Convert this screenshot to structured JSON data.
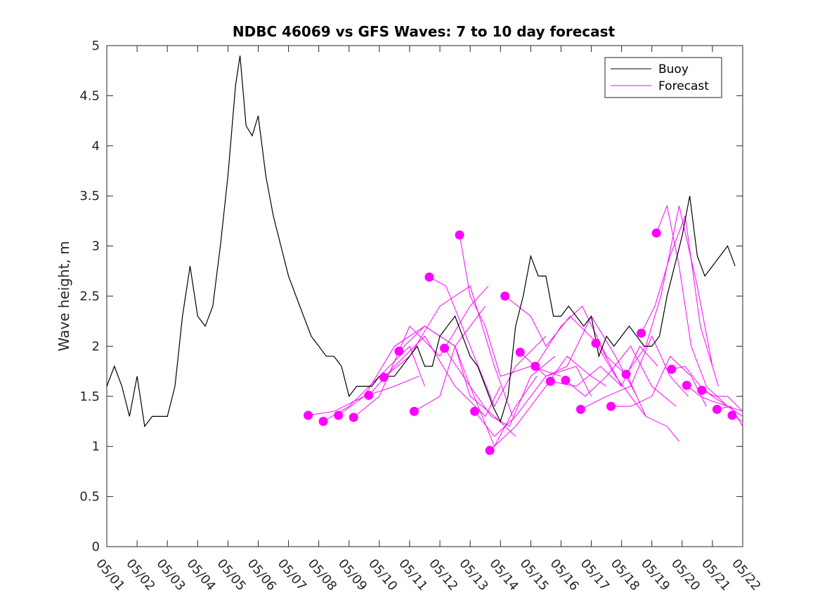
{
  "chart_data": {
    "type": "line",
    "title": "NDBC 46069 vs GFS Waves: 7 to 10 day forecast",
    "xlabel": "",
    "ylabel": "Wave height, m",
    "xlim": [
      0,
      21
    ],
    "ylim": [
      0,
      5
    ],
    "x_unit": "days since 05/01",
    "xticks": [
      0,
      1,
      2,
      3,
      4,
      5,
      6,
      7,
      8,
      9,
      10,
      11,
      12,
      13,
      14,
      15,
      16,
      17,
      18,
      19,
      20,
      21
    ],
    "xtick_labels": [
      "05/01",
      "05/02",
      "05/03",
      "05/04",
      "05/05",
      "05/06",
      "05/07",
      "05/08",
      "05/09",
      "05/10",
      "05/11",
      "05/12",
      "05/13",
      "05/14",
      "05/15",
      "05/16",
      "05/17",
      "05/18",
      "05/19",
      "05/20",
      "05/21",
      "05/22"
    ],
    "yticks": [
      0,
      0.5,
      1,
      1.5,
      2,
      2.5,
      3,
      3.5,
      4,
      4.5,
      5
    ],
    "ytick_labels": [
      "0",
      "0.5",
      "1",
      "1.5",
      "2",
      "2.5",
      "3",
      "3.5",
      "4",
      "4.5",
      "5"
    ],
    "grid": false,
    "legend_position": "top-right",
    "legend": [
      {
        "label": "Buoy",
        "color": "#000000"
      },
      {
        "label": "Forecast",
        "color": "#ff00ff"
      }
    ],
    "colors": {
      "buoy": "#000000",
      "forecast": "#ff00ff"
    },
    "series": [
      {
        "name": "Buoy",
        "x": [
          0,
          0.25,
          0.5,
          0.75,
          1,
          1.25,
          1.5,
          1.75,
          2,
          2.25,
          2.5,
          2.75,
          3,
          3.25,
          3.5,
          3.75,
          4,
          4.25,
          4.4,
          4.6,
          4.8,
          5,
          5.25,
          5.5,
          5.75,
          6,
          6.25,
          6.5,
          6.75,
          7,
          7.25,
          7.5,
          7.75,
          8,
          8.25,
          8.5,
          8.75,
          9,
          9.25,
          9.5,
          9.75,
          10,
          10.25,
          10.5,
          10.75,
          11,
          11.25,
          11.5,
          11.75,
          12,
          12.25,
          12.5,
          12.75,
          13,
          13.25,
          13.5,
          13.75,
          14,
          14.25,
          14.5,
          14.75,
          15,
          15.25,
          15.5,
          15.75,
          16,
          16.25,
          16.5,
          16.75,
          17,
          17.25,
          17.5,
          17.75,
          18,
          18.25,
          18.5,
          18.75,
          19,
          19.25,
          19.5,
          19.75,
          20,
          20.25,
          20.5,
          20.75
        ],
        "y": [
          1.6,
          1.8,
          1.6,
          1.3,
          1.7,
          1.2,
          1.3,
          1.3,
          1.3,
          1.6,
          2.3,
          2.8,
          2.3,
          2.2,
          2.4,
          3.0,
          3.7,
          4.6,
          4.9,
          4.2,
          4.1,
          4.3,
          3.7,
          3.3,
          3.0,
          2.7,
          2.5,
          2.3,
          2.1,
          2.0,
          1.9,
          1.9,
          1.8,
          1.5,
          1.6,
          1.6,
          1.6,
          1.7,
          1.7,
          1.7,
          1.8,
          1.9,
          2.0,
          1.8,
          1.8,
          2.1,
          2.2,
          2.3,
          2.1,
          1.9,
          1.8,
          1.6,
          1.4,
          1.25,
          1.5,
          2.2,
          2.5,
          2.9,
          2.7,
          2.7,
          2.3,
          2.3,
          2.4,
          2.3,
          2.2,
          2.3,
          1.9,
          2.1,
          2.0,
          2.1,
          2.2,
          2.1,
          2.0,
          2.0,
          2.1,
          2.5,
          2.8,
          3.1,
          3.5,
          2.9,
          2.7,
          2.8,
          2.9,
          3.0,
          2.8
        ]
      },
      {
        "name": "Forecast",
        "runs": [
          {
            "x": [
              6.65,
              7.5,
              8.5,
              9.5,
              10.3
            ],
            "y": [
              1.31,
              1.35,
              1.5,
              1.6,
              1.7
            ]
          },
          {
            "x": [
              7.15,
              8.0,
              9.0,
              10.0,
              10.5
            ],
            "y": [
              1.25,
              1.4,
              1.7,
              2.0,
              1.6
            ]
          },
          {
            "x": [
              7.65,
              8.5,
              9.5,
              10.5,
              11.5,
              12.5
            ],
            "y": [
              1.31,
              1.5,
              2.0,
              2.2,
              2.0,
              2.4
            ]
          },
          {
            "x": [
              8.15,
              9.0,
              10.0,
              11.0,
              12.0,
              12.6
            ],
            "y": [
              1.29,
              1.5,
              2.2,
              1.9,
              2.4,
              2.6
            ]
          },
          {
            "x": [
              8.65,
              9.5,
              10.5,
              11.5,
              12.5,
              13.0
            ],
            "y": [
              1.51,
              1.8,
              2.1,
              1.6,
              1.3,
              1.6
            ]
          },
          {
            "x": [
              9.15,
              10.0,
              11.0,
              12.0,
              12.8,
              13.4
            ],
            "y": [
              1.69,
              1.9,
              2.4,
              2.6,
              1.8,
              1.3
            ]
          },
          {
            "x": [
              9.65,
              10.5,
              11.5,
              12.0,
              12.8,
              13.5
            ],
            "y": [
              1.95,
              2.2,
              2.0,
              1.5,
              1.3,
              1.1
            ]
          },
          {
            "x": [
              10.15,
              11.0,
              11.5,
              12.0,
              12.8,
              13.5,
              14.2
            ],
            "y": [
              1.35,
              1.5,
              2.0,
              1.6,
              1.0,
              1.4,
              1.7
            ]
          },
          {
            "x": [
              10.65,
              11.2,
              12.0,
              12.8,
              13.5,
              14.5
            ],
            "y": [
              2.69,
              2.6,
              2.0,
              1.4,
              1.8,
              2.1
            ]
          },
          {
            "x": [
              11.15,
              12.0,
              12.7,
              13.3,
              14.0,
              14.8
            ],
            "y": [
              1.98,
              1.6,
              1.3,
              1.2,
              1.7,
              1.9
            ]
          },
          {
            "x": [
              11.65,
              12.0,
              12.5,
              13.0,
              14.0,
              15.0
            ],
            "y": [
              3.11,
              2.5,
              2.2,
              1.7,
              1.8,
              1.7
            ]
          },
          {
            "x": [
              12.15,
              12.8,
              13.5,
              14.5,
              15.5,
              16.0
            ],
            "y": [
              1.35,
              1.1,
              1.3,
              1.7,
              1.8,
              1.5
            ]
          },
          {
            "x": [
              12.65,
              13.5,
              14.5,
              15.2,
              16.0,
              16.5
            ],
            "y": [
              0.96,
              1.2,
              1.6,
              1.9,
              1.7,
              1.6
            ]
          },
          {
            "x": [
              13.15,
              14.0,
              14.5,
              15.3,
              16.3,
              17.0
            ],
            "y": [
              2.5,
              2.3,
              2.0,
              2.3,
              2.0,
              1.6
            ]
          },
          {
            "x": [
              13.65,
              14.5,
              15.2,
              16.0,
              16.8,
              17.5
            ],
            "y": [
              1.94,
              1.7,
              1.8,
              2.3,
              1.9,
              1.5
            ]
          },
          {
            "x": [
              14.15,
              15.0,
              15.7,
              16.5,
              17.2,
              17.8
            ],
            "y": [
              1.8,
              2.2,
              2.4,
              1.9,
              1.7,
              1.3
            ]
          },
          {
            "x": [
              14.65,
              15.5,
              16.3,
              17.0,
              17.6,
              18.2
            ],
            "y": [
              1.65,
              1.6,
              1.8,
              1.6,
              2.0,
              1.8
            ]
          },
          {
            "x": [
              15.15,
              15.8,
              16.5,
              17.3,
              18.0,
              18.8
            ],
            "y": [
              1.66,
              1.5,
              1.7,
              2.0,
              1.6,
              1.4
            ]
          },
          {
            "x": [
              15.65,
              16.5,
              17.3,
              18.0,
              18.6,
              19.2
            ],
            "y": [
              1.37,
              1.5,
              1.6,
              2.1,
              1.7,
              1.5
            ]
          },
          {
            "x": [
              16.15,
              16.8,
              17.3,
              17.8,
              18.5,
              18.9
            ],
            "y": [
              2.03,
              1.7,
              1.5,
              1.3,
              1.2,
              1.05
            ]
          },
          {
            "x": [
              16.65,
              17.3,
              18.0,
              18.6,
              19.3,
              19.8
            ],
            "y": [
              1.4,
              1.4,
              1.5,
              1.9,
              1.7,
              1.4
            ]
          },
          {
            "x": [
              17.15,
              17.8,
              18.3,
              18.9,
              19.5,
              20.0
            ],
            "y": [
              1.72,
              2.0,
              2.5,
              3.4,
              2.6,
              1.8
            ]
          },
          {
            "x": [
              17.65,
              18.1,
              18.6,
              19.1,
              19.6,
              20.2
            ],
            "y": [
              2.13,
              2.4,
              2.9,
              3.3,
              2.2,
              1.6
            ]
          },
          {
            "x": [
              18.15,
              18.5,
              18.9,
              19.3,
              19.8,
              20.5
            ],
            "y": [
              3.13,
              3.4,
              2.8,
              2.0,
              1.6,
              1.4
            ]
          },
          {
            "x": [
              18.65,
              19.1,
              19.6,
              20.0,
              20.5,
              21.0
            ],
            "y": [
              1.77,
              1.8,
              1.6,
              1.5,
              1.4,
              1.35
            ]
          },
          {
            "x": [
              19.15,
              19.6,
              20.0,
              20.5,
              21.0
            ],
            "y": [
              1.61,
              1.5,
              1.45,
              1.4,
              1.3
            ]
          },
          {
            "x": [
              19.65,
              20.1,
              20.5,
              21.0
            ],
            "y": [
              1.56,
              1.5,
              1.5,
              1.35
            ]
          },
          {
            "x": [
              20.15,
              20.6,
              21.0
            ],
            "y": [
              1.37,
              1.4,
              1.2
            ]
          },
          {
            "x": [
              20.65,
              21.0
            ],
            "y": [
              1.31,
              1.25
            ]
          }
        ]
      }
    ]
  }
}
